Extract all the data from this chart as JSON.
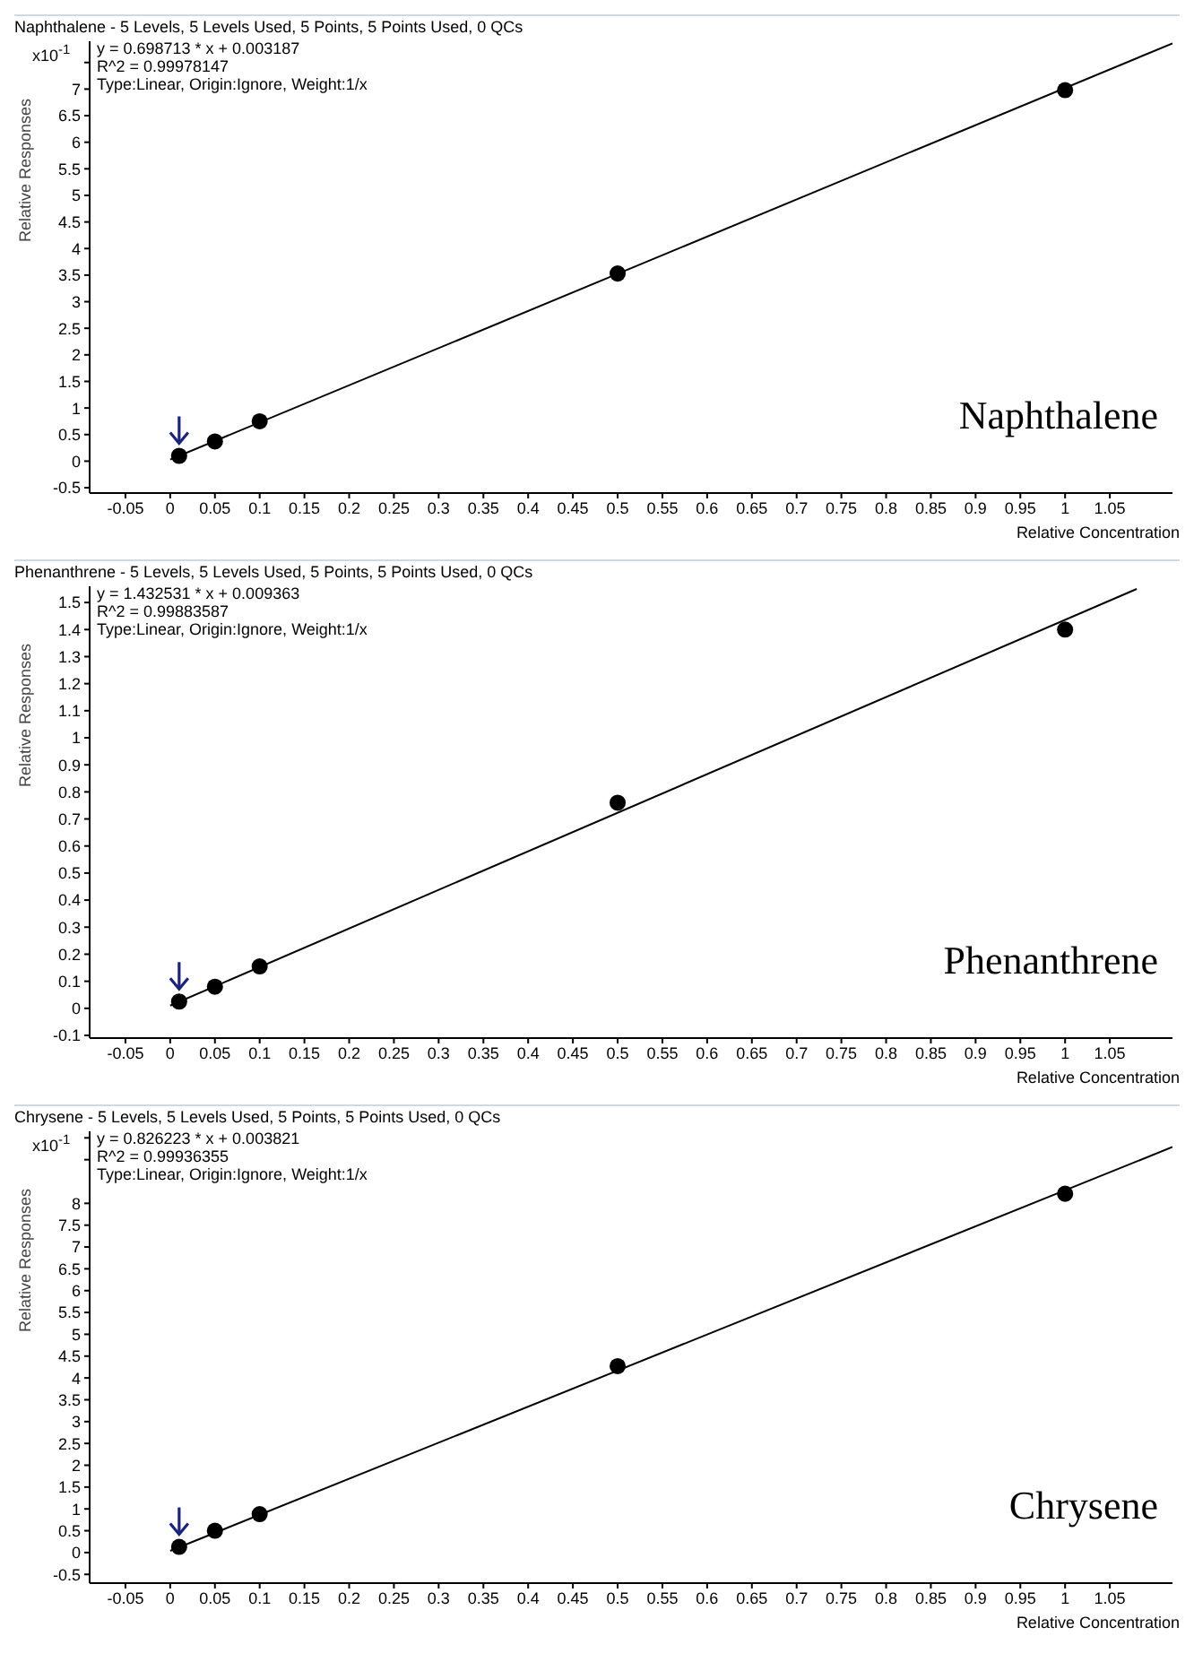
{
  "chart_data": [
    {
      "type": "scatter",
      "title": "Naphthalene - 5 Levels, 5 Levels Used, 5 Points, 5 Points Used, 0 QCs",
      "xlabel": "Relative Concentration",
      "ylabel": "Relative Responses",
      "annotations": [
        "y = 0.698713 * x  + 0.003187",
        "R^2 = 0.99978147",
        "Type:Linear, Origin:Ignore, Weight:1/x",
        "Naphthalene",
        "x10$^{-1}$"
      ],
      "xlim": [
        -0.09,
        1.12
      ],
      "xticks": [
        -0.05,
        0,
        0.05,
        0.1,
        0.15,
        0.2,
        0.25,
        0.3,
        0.35,
        0.4,
        0.45,
        0.5,
        0.55,
        0.6,
        0.65,
        0.7,
        0.75,
        0.8,
        0.85,
        0.9,
        0.95,
        1,
        1.05
      ],
      "ylim": [
        -0.6,
        7.9
      ],
      "yticks": [
        -0.5,
        0,
        0.5,
        1,
        1.5,
        2,
        2.5,
        3,
        3.5,
        4,
        4.5,
        5,
        5.5,
        6,
        6.5,
        7,
        {
          "value": 7.5,
          "label": null
        }
      ],
      "grid": false,
      "series": [
        {
          "color": "#000000",
          "marker": "circle",
          "x": [
            0.01,
            0.05,
            0.1,
            0.5,
            1
          ],
          "values": [
            0.1,
            0.37,
            0.75,
            3.53,
            6.98
          ]
        },
        {
          "type": "line",
          "color": "#000000",
          "marker": "none",
          "line_style": "solid",
          "x": [
            0,
            1.12
          ],
          "values": [
            0.03,
            7.86
          ]
        }
      ]
    },
    {
      "type": "scatter",
      "title": "Phenanthrene - 5 Levels, 5 Levels Used, 5 Points, 5 Points Used, 0 QCs",
      "xlabel": "Relative Concentration",
      "ylabel": "Relative Responses",
      "annotations": [
        "y = 1.432531 * x  + 0.009363",
        "R^2 = 0.99883587",
        "Type:Linear, Origin:Ignore, Weight:1/x",
        "Phenanthrene"
      ],
      "xlim": [
        -0.09,
        1.12
      ],
      "xticks": [
        -0.05,
        0,
        0.05,
        0.1,
        0.15,
        0.2,
        0.25,
        0.3,
        0.35,
        0.4,
        0.45,
        0.5,
        0.55,
        0.6,
        0.65,
        0.7,
        0.75,
        0.8,
        0.85,
        0.9,
        0.95,
        1,
        1.05
      ],
      "ylim": [
        -0.11,
        1.56
      ],
      "yticks": [
        -0.1,
        0,
        0.1,
        0.2,
        0.3,
        0.4,
        0.5,
        0.6,
        0.7,
        0.8,
        0.9,
        1,
        1.1,
        1.2,
        1.3,
        1.4,
        1.5
      ],
      "grid": false,
      "series": [
        {
          "color": "#000000",
          "marker": "circle",
          "x": [
            0.01,
            0.05,
            0.1,
            0.5,
            1
          ],
          "values": [
            0.025,
            0.08,
            0.155,
            0.76,
            1.4
          ]
        },
        {
          "type": "line",
          "color": "#000000",
          "marker": "none",
          "line_style": "solid",
          "x": [
            0,
            1.08
          ],
          "values": [
            0.01,
            1.55
          ]
        }
      ]
    },
    {
      "type": "scatter",
      "title": "Chrysene - 5 Levels, 5 Levels Used, 5 Points, 5 Points Used, 0 QCs",
      "xlabel": "Relative Concentration",
      "ylabel": "Relative Responses",
      "annotations": [
        "y = 0.826223 * x  + 0.003821",
        "R^2 = 0.99936355",
        "Type:Linear, Origin:Ignore, Weight:1/x",
        "Chrysene",
        "x10$^{-1}$"
      ],
      "xlim": [
        -0.09,
        1.12
      ],
      "xticks": [
        -0.05,
        0,
        0.05,
        0.1,
        0.15,
        0.2,
        0.25,
        0.3,
        0.35,
        0.4,
        0.45,
        0.5,
        0.55,
        0.6,
        0.65,
        0.7,
        0.75,
        0.8,
        0.85,
        0.9,
        0.95,
        1,
        1.05
      ],
      "ylim": [
        -0.7,
        9.65
      ],
      "yticks": [
        -0.5,
        0,
        0.5,
        1,
        1.5,
        2,
        2.5,
        3,
        3.5,
        4,
        4.5,
        5,
        5.5,
        6,
        6.5,
        7,
        7.5,
        8,
        {
          "value": 9,
          "label": null
        },
        {
          "value": 9.5,
          "label": null
        }
      ],
      "grid": false,
      "series": [
        {
          "color": "#000000",
          "marker": "circle",
          "x": [
            0.01,
            0.05,
            0.1,
            0.5,
            1
          ],
          "values": [
            0.13,
            0.5,
            0.88,
            4.27,
            8.22
          ]
        },
        {
          "type": "line",
          "color": "#000000",
          "marker": "none",
          "line_style": "solid",
          "x": [
            0,
            1.12
          ],
          "values": [
            0.04,
            9.29
          ]
        }
      ]
    }
  ]
}
